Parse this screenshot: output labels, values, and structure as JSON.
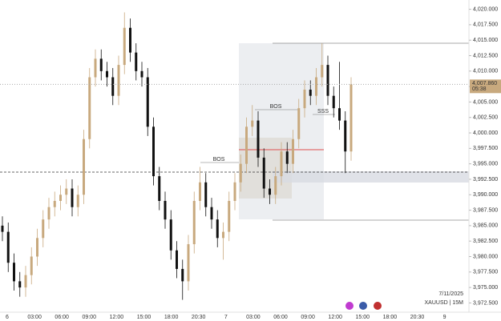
{
  "chart_data": {
    "type": "candlestick",
    "symbol": "XAUUSD | 15M",
    "date": "7/11/2025",
    "up_color": "#c8a97e",
    "down_color": "#111111",
    "ylim": [
      3971,
      4021.5
    ],
    "yticks": [
      {
        "value": 4020,
        "label": "4,020.000"
      },
      {
        "value": 4017.5,
        "label": "4,017.500"
      },
      {
        "value": 4015,
        "label": "4,015.000"
      },
      {
        "value": 4012.5,
        "label": "4,012.500"
      },
      {
        "value": 4010,
        "label": "4,010.000"
      },
      {
        "value": 4007.5,
        "label": "4,007.500"
      },
      {
        "value": 4005,
        "label": "4,005.000"
      },
      {
        "value": 4002.5,
        "label": "4,002.500"
      },
      {
        "value": 4000,
        "label": "4,000.000"
      },
      {
        "value": 3997.5,
        "label": "3,997.500"
      },
      {
        "value": 3995,
        "label": "3,995.000"
      },
      {
        "value": 3992.5,
        "label": "3,992.500"
      },
      {
        "value": 3990,
        "label": "3,990.000"
      },
      {
        "value": 3987.5,
        "label": "3,987.500"
      },
      {
        "value": 3985,
        "label": "3,985.000"
      },
      {
        "value": 3982.5,
        "label": "3,982.500"
      },
      {
        "value": 3980,
        "label": "3,980.000"
      },
      {
        "value": 3977.5,
        "label": "3,977.500"
      },
      {
        "value": 3975,
        "label": "3,975.000"
      },
      {
        "value": 3972.5,
        "label": "3,972.500"
      }
    ],
    "xticks": [
      "6",
      "03:00",
      "06:00",
      "09:00",
      "12:00",
      "15:00",
      "18:00",
      "20:30",
      "7",
      "03:00",
      "06:00",
      "09:00",
      "12:00",
      "15:00",
      "18:00",
      "20:30",
      "9"
    ],
    "last_price": {
      "value": 4007.86,
      "label": "4,007.860"
    },
    "countdown": "05:38",
    "annotations": [
      "BOS",
      "BOS",
      "SSS"
    ],
    "open": [
      3985,
      3984,
      3979,
      3976,
      3975,
      3977,
      3980,
      3983,
      3986,
      3988,
      3989,
      3990,
      3991,
      3988,
      3990,
      3999,
      4009,
      4012,
      4010,
      4009,
      4006,
      4011,
      4017,
      4013,
      4010,
      4009,
      4001,
      3993,
      3989,
      3986,
      3981,
      3978,
      3976,
      3982,
      3989,
      3992,
      3988,
      3986,
      3983,
      3984,
      3989,
      3992,
      3995,
      4001,
      4002,
      3996,
      3991,
      3990,
      3993,
      3997,
      3995,
      3999,
      4004,
      4007,
      4006,
      4009,
      4011,
      4006,
      4004,
      4002,
      3997
    ],
    "close": [
      3984,
      3979,
      3976,
      3975,
      3977,
      3980,
      3983,
      3986,
      3988,
      3989,
      3990,
      3991,
      3988,
      3990,
      3999,
      4009,
      4012,
      4010,
      4009,
      4006,
      4011,
      4017,
      4013,
      4010,
      4009,
      4001,
      3993,
      3989,
      3986,
      3981,
      3978,
      3976,
      3982,
      3989,
      3992,
      3988,
      3986,
      3983,
      3984,
      3989,
      3992,
      3995,
      4001,
      4002,
      3996,
      3991,
      3990,
      3993,
      3997,
      3995,
      3999,
      4004,
      4007,
      4006,
      4009,
      4011,
      4006,
      4004,
      4002,
      3997,
      4007.86
    ],
    "high": [
      3986.5,
      3985.5,
      3980.5,
      3977.5,
      3978.5,
      3981.5,
      3984.5,
      3987.5,
      3989.5,
      3990.5,
      3991.5,
      3992.5,
      3992.5,
      3991.5,
      4000.5,
      4010.5,
      4013.5,
      4013.5,
      4011.5,
      4010.5,
      4012.5,
      4019.5,
      4018.5,
      4014.5,
      4011.5,
      4010.5,
      4002.5,
      3994.5,
      3990.5,
      3987.5,
      3982.5,
      3979.5,
      3983.5,
      3990.5,
      3994.5,
      3993.5,
      3989.5,
      3987.5,
      3985.5,
      3990.5,
      3993.5,
      3996.5,
      4002.5,
      4004.5,
      4003.5,
      3997.5,
      3992.5,
      3994.5,
      3998.5,
      3998.5,
      4000.5,
      4005.5,
      4008.5,
      4008.5,
      4010.5,
      4014.5,
      4012.5,
      4007.5,
      4011.5,
      4003.5,
      4009
    ],
    "low": [
      3982.5,
      3977.5,
      3974.5,
      3973.5,
      3973.5,
      3975.5,
      3978.5,
      3981.5,
      3984.5,
      3986.5,
      3987.5,
      3988.5,
      3986.5,
      3986.5,
      3988.5,
      3997.5,
      4007.5,
      4008.5,
      4007.5,
      4004.5,
      4004.5,
      4009.5,
      4011.5,
      4008.5,
      4007.5,
      3999.5,
      3991.5,
      3987.5,
      3984.5,
      3979.5,
      3976.5,
      3973,
      3974.5,
      3980.5,
      3987.5,
      3986.5,
      3984.5,
      3981.5,
      3979.5,
      3982.5,
      3987.5,
      3990.5,
      3993.5,
      3999.5,
      3994.5,
      3989.5,
      3988.5,
      3988.5,
      3991.5,
      3993.5,
      3993.5,
      3997.5,
      4002.5,
      4004.5,
      4004.5,
      4007.5,
      4004.5,
      4002.5,
      4000.5,
      3993.5,
      3995.5
    ]
  }
}
